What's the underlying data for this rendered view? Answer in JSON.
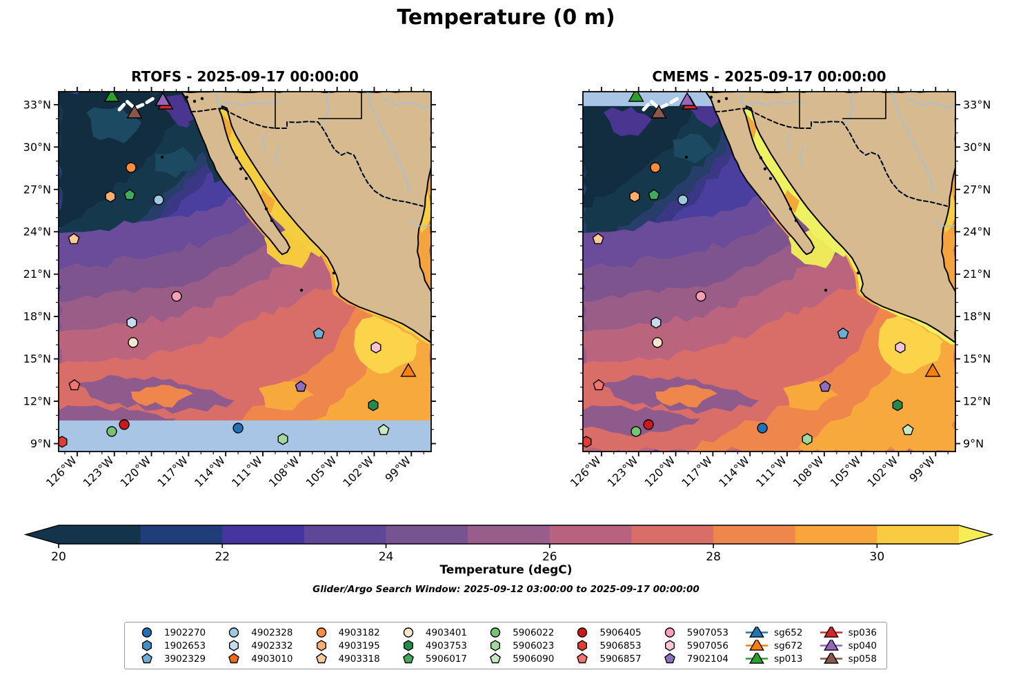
{
  "figure": {
    "title": "Temperature (0 m)"
  },
  "panels": [
    {
      "name": "RTOFS",
      "title": "RTOFS - 2025-09-17 00:00:00",
      "nodata_band": "bottom",
      "label_side": "left"
    },
    {
      "name": "CMEMS",
      "title": "CMEMS - 2025-09-17 00:00:00",
      "nodata_band": "top",
      "label_side": "right"
    }
  ],
  "axes": {
    "x_tick_labels": [
      "126°W",
      "123°W",
      "120°W",
      "117°W",
      "114°W",
      "111°W",
      "108°W",
      "105°W",
      "102°W",
      "99°W"
    ],
    "x_tick_lons": [
      -126,
      -123,
      -120,
      -117,
      -114,
      -111,
      -108,
      -105,
      -102,
      -99
    ],
    "y_tick_labels": [
      "33°N",
      "30°N",
      "27°N",
      "24°N",
      "21°N",
      "18°N",
      "15°N",
      "12°N",
      "9°N"
    ],
    "y_tick_lats": [
      33,
      30,
      27,
      24,
      21,
      18,
      15,
      12,
      9
    ],
    "lon_range": [
      -127.5,
      -97.4
    ],
    "lat_range": [
      8.44,
      33.92
    ]
  },
  "colorbar": {
    "label": "Temperature (degC)",
    "tick_labels": [
      "20",
      "22",
      "24",
      "26",
      "28",
      "30"
    ],
    "tick_values": [
      20,
      22,
      24,
      26,
      28,
      30
    ],
    "range": [
      20,
      31
    ],
    "segment_colors": [
      "#13344B",
      "#1F3E79",
      "#46349F",
      "#5E4796",
      "#775391",
      "#985D8B",
      "#B9627F",
      "#D96E68",
      "#EF874C",
      "#F8A53C",
      "#F9CB40"
    ],
    "extend_low_color": "#13344B",
    "extend_high_color": "#F5ED53"
  },
  "annotations": {
    "search_window": "Glider/Argo Search Window: 2025-09-12 03:00:00 to 2025-09-17 00:00:00"
  },
  "chart_data": {
    "type": "map",
    "land_color": "#D7BA90",
    "nodata_color": "#A9C5E6",
    "ocean_base_color": "#4A3F9F",
    "river_color": "#9CC3E0",
    "nodata_band_lat": {
      "RTOFS": 10.64,
      "CMEMS": 32.9
    },
    "markers": [
      {
        "id": "1902270",
        "shape": "circle",
        "color": "#2171B5",
        "lon": -113.0,
        "lat": 10.1
      },
      {
        "id": "3902329",
        "shape": "pentagon",
        "color": "#6BAED6",
        "lon": -106.48,
        "lat": 16.79
      },
      {
        "id": "4902328",
        "shape": "circle",
        "color": "#9ECAE1",
        "lon": -119.42,
        "lat": 26.26
      },
      {
        "id": "4902332",
        "shape": "hexagon",
        "color": "#C6DBEF",
        "lon": -121.59,
        "lat": 17.57
      },
      {
        "id": "4903182",
        "shape": "circle",
        "color": "#FD8D3C",
        "lon": -121.65,
        "lat": 28.55
      },
      {
        "id": "4903195",
        "shape": "hexagon",
        "color": "#FDAE6B",
        "lon": -123.32,
        "lat": 26.5
      },
      {
        "id": "4903318",
        "shape": "pentagon",
        "color": "#FDC998",
        "lon": -126.27,
        "lat": 23.48
      },
      {
        "id": "4903401",
        "shape": "circle",
        "color": "#FEE6CE",
        "lon": -121.48,
        "lat": 16.16
      },
      {
        "id": "4903753",
        "shape": "hexagon",
        "color": "#238B45",
        "lon": -102.08,
        "lat": 11.72
      },
      {
        "id": "5906017",
        "shape": "pentagon",
        "color": "#41AB5D",
        "lon": -121.76,
        "lat": 26.6
      },
      {
        "id": "5906022",
        "shape": "circle",
        "color": "#74C476",
        "lon": -123.21,
        "lat": 9.86
      },
      {
        "id": "5906023",
        "shape": "hexagon",
        "color": "#A1D99B",
        "lon": -109.38,
        "lat": 9.32
      },
      {
        "id": "5906090",
        "shape": "pentagon",
        "color": "#C7E9C0",
        "lon": -101.24,
        "lat": 9.96
      },
      {
        "id": "5906405",
        "shape": "circle",
        "color": "#CB181D",
        "lon": -122.2,
        "lat": 10.35
      },
      {
        "id": "5906853",
        "shape": "hexagon",
        "color": "#E23D32",
        "lon": -127.22,
        "lat": 9.13
      },
      {
        "id": "5906857",
        "shape": "pentagon",
        "color": "#F4756B",
        "lon": -126.22,
        "lat": 13.13
      },
      {
        "id": "5907053",
        "shape": "circle",
        "color": "#FA9FB5",
        "lon": -117.97,
        "lat": 19.43
      },
      {
        "id": "5907056",
        "shape": "hexagon",
        "color": "#FCC5D4",
        "lon": -101.86,
        "lat": 15.81
      },
      {
        "id": "7902104",
        "shape": "pentagon",
        "color": "#8F6DBF",
        "lon": -107.93,
        "lat": 13.03
      },
      {
        "id": "sg672",
        "shape": "triangle",
        "color": "#FF7F0E",
        "lon": -99.24,
        "lat": 14.06
      },
      {
        "id": "sp036",
        "shape": "triangle",
        "color": "#D62728",
        "lon": -118.86,
        "lat": 32.99
      },
      {
        "id": "sp040",
        "shape": "triangle",
        "color": "#9467BD",
        "lon": -119.08,
        "lat": 33.24
      },
      {
        "id": "sp013",
        "shape": "triangle",
        "color": "#2CA02C",
        "lon": -123.2,
        "lat": 33.53
      },
      {
        "id": "sp058",
        "shape": "triangle",
        "color": "#8C564B",
        "lon": -121.37,
        "lat": 32.36
      }
    ],
    "legend_columns": [
      [
        {
          "label": "1902270",
          "shape": "circle",
          "color": "#2171B5"
        },
        {
          "label": "1902653",
          "shape": "hexagon",
          "color": "#3F8EC4"
        },
        {
          "label": "3902329",
          "shape": "pentagon",
          "color": "#6BAED6"
        }
      ],
      [
        {
          "label": "4902328",
          "shape": "circle",
          "color": "#9ECAE1"
        },
        {
          "label": "4902332",
          "shape": "hexagon",
          "color": "#C6DBEF"
        },
        {
          "label": "4903010",
          "shape": "pentagon",
          "color": "#F16913"
        }
      ],
      [
        {
          "label": "4903182",
          "shape": "circle",
          "color": "#FD8D3C"
        },
        {
          "label": "4903195",
          "shape": "hexagon",
          "color": "#FDAE6B"
        },
        {
          "label": "4903318",
          "shape": "pentagon",
          "color": "#FDC998"
        }
      ],
      [
        {
          "label": "4903401",
          "shape": "circle",
          "color": "#FEE6CE"
        },
        {
          "label": "4903753",
          "shape": "hexagon",
          "color": "#238B45"
        },
        {
          "label": "5906017",
          "shape": "pentagon",
          "color": "#41AB5D"
        }
      ],
      [
        {
          "label": "5906022",
          "shape": "circle",
          "color": "#74C476"
        },
        {
          "label": "5906023",
          "shape": "hexagon",
          "color": "#A1D99B"
        },
        {
          "label": "5906090",
          "shape": "pentagon",
          "color": "#C7E9C0"
        }
      ],
      [
        {
          "label": "5906405",
          "shape": "circle",
          "color": "#CB181D"
        },
        {
          "label": "5906853",
          "shape": "hexagon",
          "color": "#E23D32"
        },
        {
          "label": "5906857",
          "shape": "pentagon",
          "color": "#F4756B"
        }
      ],
      [
        {
          "label": "5907053",
          "shape": "circle",
          "color": "#FA9FB5"
        },
        {
          "label": "5907056",
          "shape": "hexagon",
          "color": "#FCC5D4"
        },
        {
          "label": "7902104",
          "shape": "pentagon",
          "color": "#8F6DBF"
        }
      ],
      [
        {
          "label": "sg652",
          "shape": "glider",
          "color": "#1F77B4"
        },
        {
          "label": "sg672",
          "shape": "glider",
          "color": "#FF7F0E"
        },
        {
          "label": "sp013",
          "shape": "glider",
          "color": "#2CA02C"
        }
      ],
      [
        {
          "label": "sp036",
          "shape": "glider",
          "color": "#D62728"
        },
        {
          "label": "sp040",
          "shape": "glider",
          "color": "#9467BD"
        },
        {
          "label": "sp058",
          "shape": "glider",
          "color": "#8C564B"
        }
      ]
    ],
    "sst_palette": {
      "indigo_dark": "#3A3884",
      "navy": "#273E6B",
      "teal_dark": "#16384D",
      "teal_core": "#122C40",
      "teal_patch": "#1D4A63",
      "violet_patch": "#4A3590",
      "purple1": "#6A4C9A",
      "purple2": "#7E548F",
      "mauve1": "#9A5D87",
      "mauve2": "#BA647E",
      "salmon": "#D96E68",
      "orange": "#EF874C",
      "orange_yellow": "#F8A93D",
      "yellow": "#FBD44A",
      "gulf_rtofs": "#F5CE3F",
      "gulf_cmems": "#EDF162",
      "mouth_rtofs": "#F6C93F",
      "mouth_cmems": "#EDE95A",
      "mauve_patch": "#8F5A8C",
      "gom_orange": "#F5A33F",
      "gom_yellow": "#F8CE45",
      "gulf_patch": "#F3A83C"
    }
  }
}
